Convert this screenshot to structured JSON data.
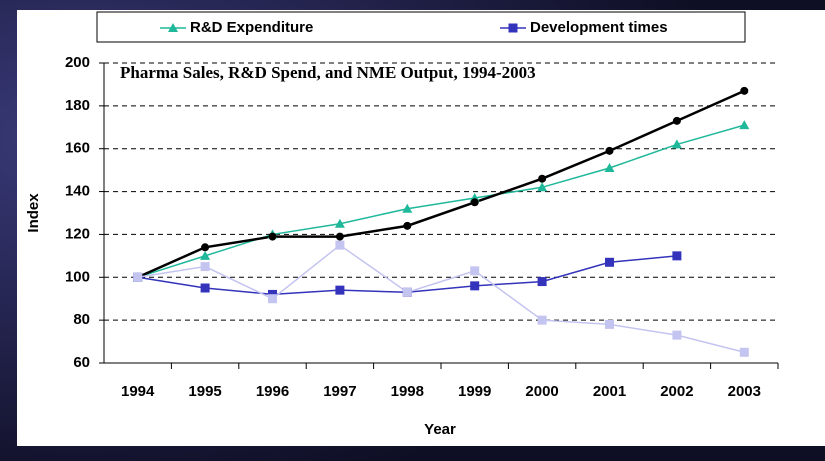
{
  "chart_data": {
    "type": "line",
    "title": "Pharma Sales, R&D Spend, and NME Output, 1994-2003",
    "x_label": "Year",
    "y_label": "Index",
    "categories": [
      "1994",
      "1995",
      "1996",
      "1997",
      "1998",
      "1999",
      "2000",
      "2001",
      "2002",
      "2003"
    ],
    "series": [
      {
        "name": "R&D Expenditure",
        "color": "#1fb89a",
        "marker": "triangle",
        "values": [
          100,
          110,
          120,
          125,
          132,
          137,
          142,
          151,
          162,
          171
        ]
      },
      {
        "name": "Development times",
        "color": "#3333bb",
        "marker": "square",
        "values": [
          100,
          95,
          92,
          94,
          93,
          96,
          98,
          107,
          110,
          null
        ]
      },
      {
        "color": "#000000",
        "marker": "circle",
        "values": [
          100,
          114,
          119,
          119,
          124,
          135,
          146,
          159,
          173,
          187
        ]
      },
      {
        "color": "#c4c4f0",
        "marker": "square",
        "values": [
          100,
          105,
          90,
          115,
          93,
          103,
          80,
          78,
          73,
          65
        ]
      }
    ],
    "ylim": [
      60,
      200
    ],
    "yticks": [
      60,
      80,
      100,
      120,
      140,
      160,
      180,
      200
    ],
    "grid": true
  }
}
